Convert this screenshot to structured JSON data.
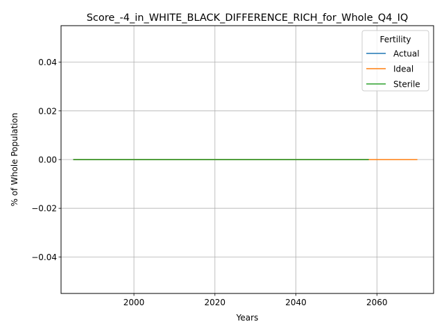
{
  "chart_data": {
    "type": "line",
    "title": "Score_-4_in_WHITE_BLACK_DIFFERENCE_RICH_for_Whole_Q4_IQ",
    "xlabel": "Years",
    "ylabel": "% of Whole Population",
    "xlim": [
      1982,
      2074
    ],
    "ylim": [
      -0.055,
      0.055
    ],
    "xticks": [
      2000,
      2020,
      2040,
      2060
    ],
    "yticks": [
      -0.04,
      -0.02,
      0.0,
      0.02,
      0.04
    ],
    "xtick_labels": [
      "2000",
      "2020",
      "2040",
      "2060"
    ],
    "ytick_labels": [
      "−0.04",
      "−0.02",
      "0.00",
      "0.02",
      "0.04"
    ],
    "grid": true,
    "legend": {
      "title": "Fertility",
      "placement": "top-right"
    },
    "series": [
      {
        "name": "Actual",
        "color": "#1f77b4",
        "x": [
          1985,
          2058
        ],
        "y": [
          0,
          0
        ]
      },
      {
        "name": "Ideal",
        "color": "#ff7f0e",
        "x": [
          1985,
          2070
        ],
        "y": [
          0,
          0
        ]
      },
      {
        "name": "Sterile",
        "color": "#2ca02c",
        "x": [
          1985,
          2058
        ],
        "y": [
          0,
          0
        ]
      }
    ]
  }
}
